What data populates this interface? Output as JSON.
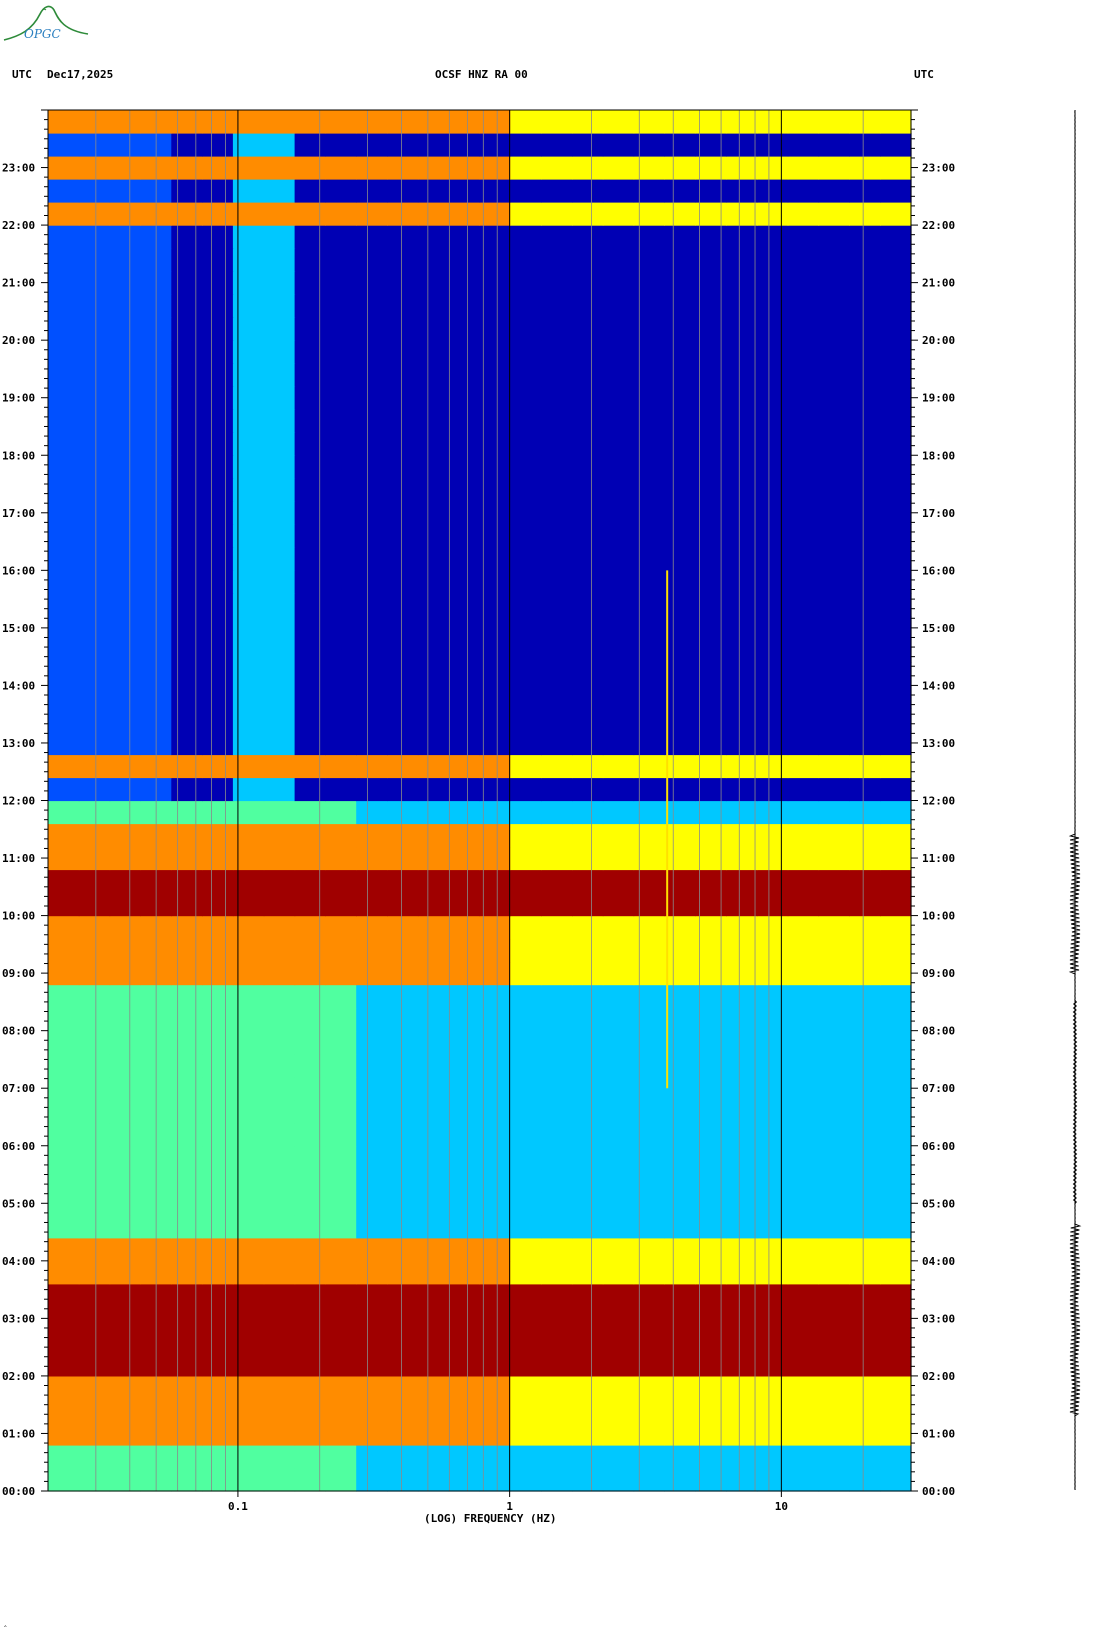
{
  "logo": {
    "text": "OPGC",
    "icon": "opgc-volcano-logo"
  },
  "header": {
    "left_tz": "UTC",
    "date": "Dec17,2025",
    "station": "OCSF HNZ RA 00",
    "right_tz": "UTC"
  },
  "chart_data": {
    "type": "heatmap",
    "title": "OCSF HNZ RA 00",
    "xlabel": "(LOG) FREQUENCY (HZ)",
    "ylabel": "UTC",
    "x_scale": "log",
    "xlim": [
      0.02,
      30
    ],
    "x_ticks": [
      0.1,
      1,
      10
    ],
    "x_tick_labels": [
      "0.1",
      "1",
      "10"
    ],
    "ylim_hours": [
      0,
      24
    ],
    "y_tick_labels": [
      "00:00",
      "01:00",
      "02:00",
      "03:00",
      "04:00",
      "05:00",
      "06:00",
      "07:00",
      "08:00",
      "09:00",
      "10:00",
      "11:00",
      "12:00",
      "13:00",
      "14:00",
      "15:00",
      "16:00",
      "17:00",
      "18:00",
      "19:00",
      "20:00",
      "21:00",
      "22:00",
      "23:00"
    ],
    "colormap": [
      "#0000b4",
      "#0050ff",
      "#00c8ff",
      "#50ffa0",
      "#ffff00",
      "#ff8c00",
      "#ff0000",
      "#a00000"
    ],
    "high_energy_bands_hours": [
      [
        1.9,
        3.7
      ],
      [
        9.9,
        10.9
      ]
    ],
    "moderate_bands_hours": [
      [
        0.9,
        1.9
      ],
      [
        3.7,
        4.4
      ],
      [
        9.0,
        9.9
      ],
      [
        10.9,
        11.5
      ],
      [
        12.6,
        12.95
      ],
      [
        22.1,
        22.45
      ],
      [
        22.85,
        23.05
      ],
      [
        23.5,
        24.0
      ]
    ],
    "annotation": "vertical line near 3.8 Hz from 07:00 to 16:00"
  },
  "footer": {
    "mark": "‸"
  }
}
